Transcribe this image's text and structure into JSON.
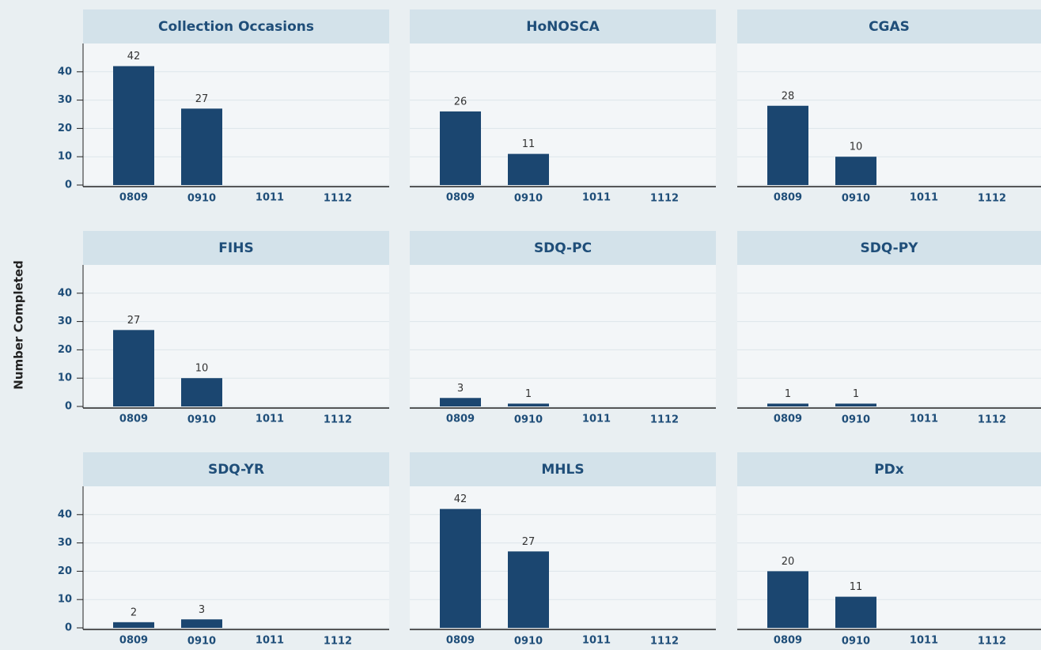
{
  "ylabel": "Number Completed",
  "chart_data": [
    {
      "type": "bar",
      "title": "Collection Occasions",
      "categories": [
        "0809",
        "0910",
        "1011",
        "1112"
      ],
      "values": [
        42,
        27,
        null,
        null
      ],
      "color": "#1b4670",
      "ylim": [
        0,
        50
      ],
      "yticks": [
        0,
        10,
        20,
        30,
        40
      ],
      "grid": true,
      "show_ytick_labels": true
    },
    {
      "type": "bar",
      "title": "HoNOSCA",
      "categories": [
        "0809",
        "0910",
        "1011",
        "1112"
      ],
      "values": [
        26,
        11,
        null,
        null
      ],
      "color": "#1b4670",
      "ylim": [
        0,
        50
      ],
      "yticks": [
        0,
        10,
        20,
        30,
        40
      ],
      "grid": true,
      "show_ytick_labels": false
    },
    {
      "type": "bar",
      "title": "CGAS",
      "categories": [
        "0809",
        "0910",
        "1011",
        "1112"
      ],
      "values": [
        28,
        10,
        null,
        null
      ],
      "color": "#1b4670",
      "ylim": [
        0,
        50
      ],
      "yticks": [
        0,
        10,
        20,
        30,
        40
      ],
      "grid": true,
      "show_ytick_labels": false
    },
    {
      "type": "bar",
      "title": "FIHS",
      "categories": [
        "0809",
        "0910",
        "1011",
        "1112"
      ],
      "values": [
        27,
        10,
        null,
        null
      ],
      "color": "#1b4670",
      "ylim": [
        0,
        50
      ],
      "yticks": [
        0,
        10,
        20,
        30,
        40
      ],
      "grid": true,
      "show_ytick_labels": true
    },
    {
      "type": "bar",
      "title": "SDQ-PC",
      "categories": [
        "0809",
        "0910",
        "1011",
        "1112"
      ],
      "values": [
        3,
        1,
        null,
        null
      ],
      "color": "#1b4670",
      "ylim": [
        0,
        50
      ],
      "yticks": [
        0,
        10,
        20,
        30,
        40
      ],
      "grid": true,
      "show_ytick_labels": false
    },
    {
      "type": "bar",
      "title": "SDQ-PY",
      "categories": [
        "0809",
        "0910",
        "1011",
        "1112"
      ],
      "values": [
        1,
        1,
        null,
        null
      ],
      "color": "#1b4670",
      "ylim": [
        0,
        50
      ],
      "yticks": [
        0,
        10,
        20,
        30,
        40
      ],
      "grid": true,
      "show_ytick_labels": false
    },
    {
      "type": "bar",
      "title": "SDQ-YR",
      "categories": [
        "0809",
        "0910",
        "1011",
        "1112"
      ],
      "values": [
        2,
        3,
        null,
        null
      ],
      "color": "#1b4670",
      "ylim": [
        0,
        50
      ],
      "yticks": [
        0,
        10,
        20,
        30,
        40
      ],
      "grid": true,
      "show_ytick_labels": true
    },
    {
      "type": "bar",
      "title": "MHLS",
      "categories": [
        "0809",
        "0910",
        "1011",
        "1112"
      ],
      "values": [
        42,
        27,
        null,
        null
      ],
      "color": "#1b4670",
      "ylim": [
        0,
        50
      ],
      "yticks": [
        0,
        10,
        20,
        30,
        40
      ],
      "grid": true,
      "show_ytick_labels": false
    },
    {
      "type": "bar",
      "title": "PDx",
      "categories": [
        "0809",
        "0910",
        "1011",
        "1112"
      ],
      "values": [
        20,
        11,
        null,
        null
      ],
      "color": "#1b4670",
      "ylim": [
        0,
        50
      ],
      "yticks": [
        0,
        10,
        20,
        30,
        40
      ],
      "grid": true,
      "show_ytick_labels": false
    }
  ]
}
